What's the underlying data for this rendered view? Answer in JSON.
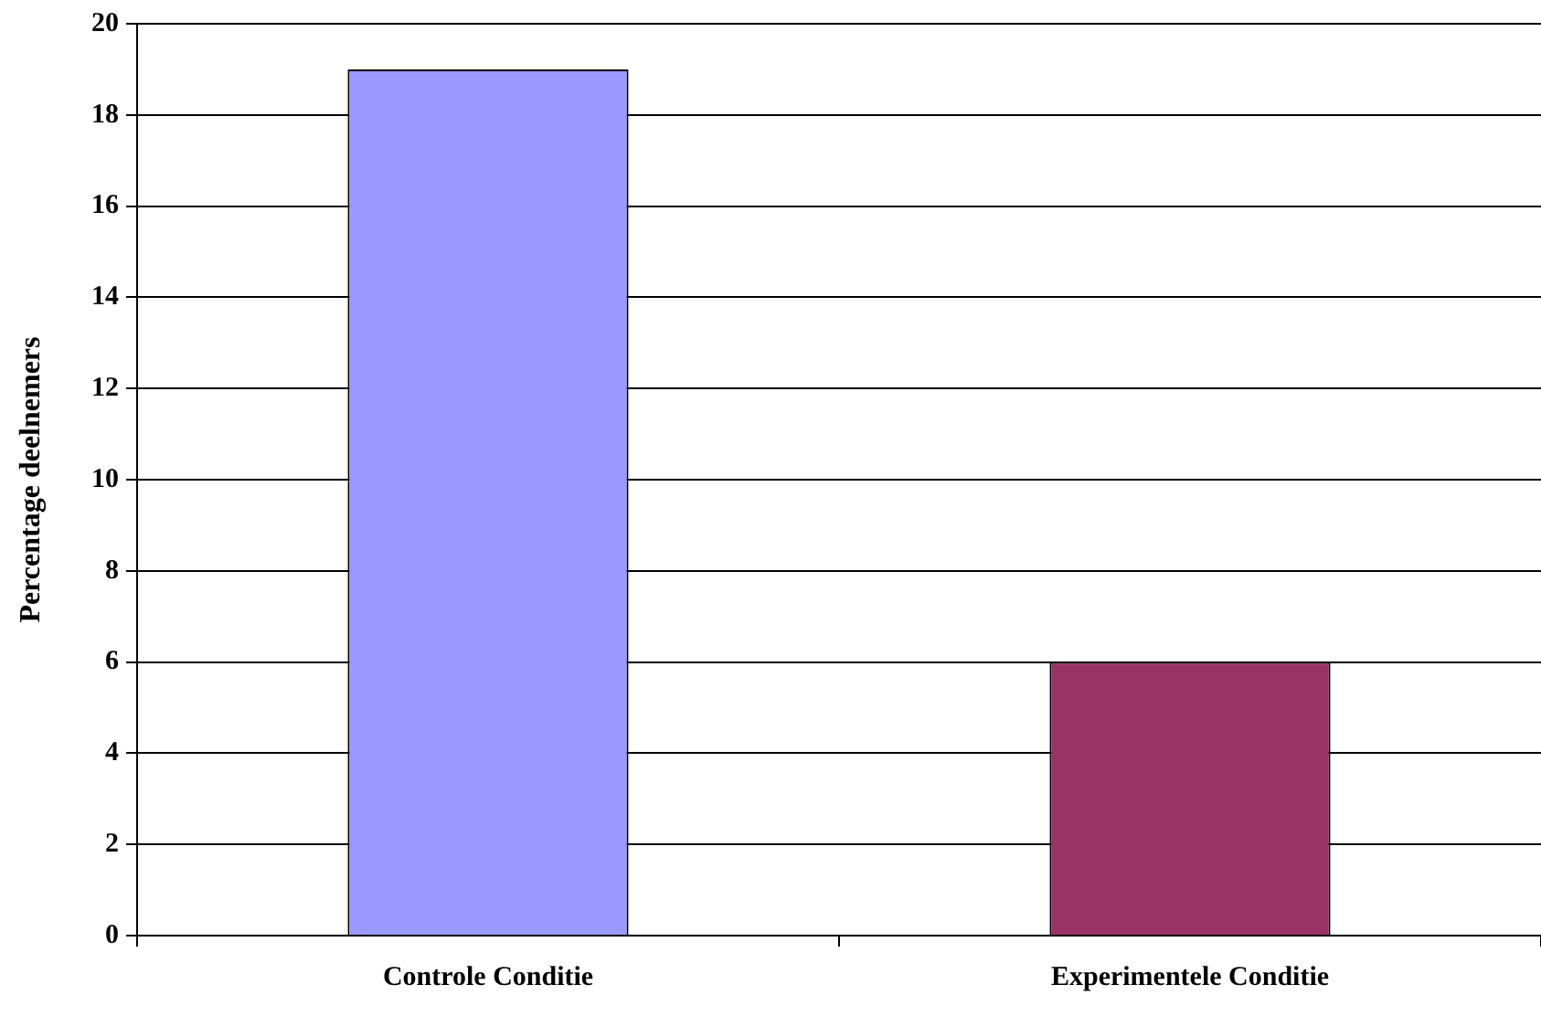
{
  "chart_data": {
    "type": "bar",
    "ylabel": "Percentage deelnemers",
    "categories": [
      "Controle Conditie",
      "Experimentele Conditie"
    ],
    "values": [
      19,
      6
    ],
    "colors": [
      "#9999ff",
      "#993366"
    ],
    "ylim": [
      0,
      20
    ],
    "yticks": [
      0,
      2,
      4,
      6,
      8,
      10,
      12,
      14,
      16,
      18,
      20
    ],
    "grid": "y",
    "legend": false
  }
}
